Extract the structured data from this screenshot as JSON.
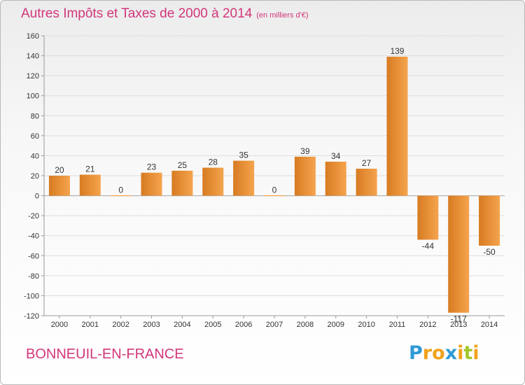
{
  "title": "Autres Impôts et Taxes de 2000 à 2014",
  "subtitle": "(en milliers d'€)",
  "commune": "BONNEUIL-EN-FRANCE",
  "logo": {
    "text": "Proxiti",
    "letters": [
      {
        "char": "P",
        "color": "#2f9ad6"
      },
      {
        "char": "r",
        "color": "#f0a21c"
      },
      {
        "char": "o",
        "color": "#f0a21c"
      },
      {
        "char": "x",
        "color": "#2f9ad6"
      },
      {
        "char": "i",
        "color": "#f0a21c"
      },
      {
        "char": "t",
        "color": "#a3c72b"
      },
      {
        "char": "i",
        "color": "#f0a21c"
      }
    ]
  },
  "colors": {
    "bar_light": "#f5a44e",
    "bar_dark": "#d77b22",
    "title": "#d2367a",
    "grid": "#dddddd",
    "axis": "#999999"
  },
  "chart_data": {
    "type": "bar",
    "categories": [
      "2000",
      "2001",
      "2002",
      "2003",
      "2004",
      "2005",
      "2006",
      "2007",
      "2008",
      "2009",
      "2010",
      "2011",
      "2012",
      "2013",
      "2014"
    ],
    "values": [
      20,
      21,
      0,
      23,
      25,
      28,
      35,
      0,
      39,
      34,
      27,
      139,
      -44,
      -117,
      -50
    ],
    "data_labels": [
      "20",
      "21",
      "0",
      "23",
      "25",
      "28",
      "35",
      "0",
      "39",
      "34",
      "27",
      "139",
      "-44",
      "-117",
      "-50"
    ],
    "ylim": [
      -120,
      160
    ],
    "yticks": [
      -120,
      -100,
      -80,
      -60,
      -40,
      -20,
      0,
      20,
      40,
      60,
      80,
      100,
      120,
      140,
      160
    ],
    "grid": true,
    "title": "Autres Impôts et Taxes de 2000 à 2014",
    "xlabel": "",
    "ylabel": ""
  }
}
